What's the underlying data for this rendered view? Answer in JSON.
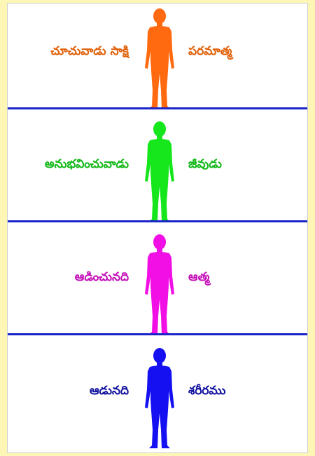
{
  "panels": [
    {
      "left_label": "చూచువాడు సాక్షి",
      "right_label": "పరమాత్మ",
      "color": "#ff6a10"
    },
    {
      "left_label": "అనుభవించువాడు",
      "right_label": "జీవుడు",
      "color": "#16e61c"
    },
    {
      "left_label": "ఆడించునది",
      "right_label": "ఆత్మ",
      "color": "#f20fe6"
    },
    {
      "left_label": "ఆడునది",
      "right_label": "శరీరము",
      "color": "#1410f2"
    }
  ],
  "label_colors": [
    "#e06008",
    "#12b818",
    "#c40fb8",
    "#10109e"
  ],
  "divider_color": "#1a24c9",
  "icons": [
    "human-figure-icon"
  ]
}
